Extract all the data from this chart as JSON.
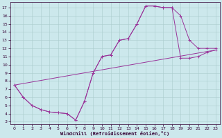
{
  "xlabel": "Windchill (Refroidissement éolien,°C)",
  "bg_color": "#cce8ec",
  "line_color": "#993399",
  "grid_color": "#aacccc",
  "spine_color": "#330033",
  "tick_color": "#330033",
  "curve1_x": [
    0,
    1,
    2,
    3,
    4,
    5,
    6,
    7,
    8,
    9,
    10,
    11,
    12,
    13,
    14,
    15,
    16,
    17,
    18,
    19,
    20,
    21,
    22,
    23
  ],
  "curve1_y": [
    7.5,
    6.0,
    5.0,
    4.5,
    4.2,
    4.1,
    4.0,
    3.2,
    5.5,
    9.0,
    11.0,
    11.2,
    13.0,
    13.2,
    15.0,
    17.2,
    17.2,
    17.0,
    17.0,
    16.0,
    13.0,
    12.0,
    12.0,
    12.0
  ],
  "curve2_x": [
    0,
    1,
    2,
    3,
    4,
    5,
    6,
    7,
    8,
    9,
    10,
    11,
    12,
    13,
    14,
    15,
    16,
    17,
    18,
    19,
    20,
    21,
    22,
    23
  ],
  "curve2_y": [
    7.5,
    6.0,
    5.0,
    4.5,
    4.2,
    4.1,
    4.0,
    3.2,
    5.5,
    9.0,
    11.0,
    11.2,
    13.0,
    13.2,
    15.0,
    17.2,
    17.2,
    17.0,
    17.0,
    10.8,
    10.8,
    11.0,
    11.5,
    11.8
  ],
  "curve3_x": [
    0,
    23
  ],
  "curve3_y": [
    7.5,
    11.8
  ],
  "yticks": [
    3,
    4,
    5,
    6,
    7,
    8,
    9,
    10,
    11,
    12,
    13,
    14,
    15,
    16,
    17
  ],
  "xticks": [
    0,
    1,
    2,
    3,
    4,
    5,
    6,
    7,
    8,
    9,
    10,
    11,
    12,
    13,
    14,
    15,
    16,
    17,
    18,
    19,
    20,
    21,
    22,
    23
  ],
  "ylim": [
    2.7,
    17.7
  ],
  "xlim": [
    -0.5,
    23.5
  ],
  "tick_labelsize": 4.5,
  "xlabel_fontsize": 5.0,
  "linewidth": 0.7,
  "markersize": 3.0,
  "markeredgewidth": 0.7
}
